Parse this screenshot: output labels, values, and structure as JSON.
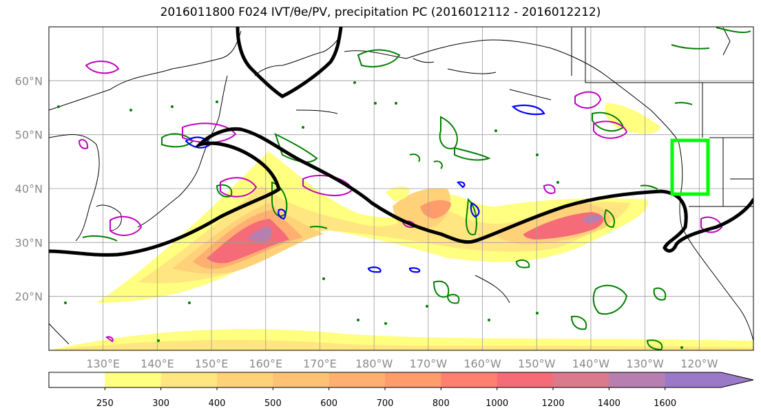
{
  "title": "2016011800 F024 IVT/θe/PV, precipitation PC (2016012112 - 2016012212)",
  "map": {
    "projection": "PlateCarree",
    "extent": {
      "lon_min": 120,
      "lon_max": 250,
      "lat_min": 10,
      "lat_max": 70
    },
    "lat_ticks": [
      "20°N",
      "30°N",
      "40°N",
      "50°N",
      "60°N"
    ],
    "lon_ticks": [
      "130°E",
      "140°E",
      "150°E",
      "160°E",
      "170°E",
      "180°W",
      "170°W",
      "160°W",
      "150°W",
      "140°W",
      "130°W",
      "120°W"
    ],
    "grid": true,
    "colors": {
      "pv_contour": "#000000",
      "theta_positive": "#008000",
      "theta_negative": "#0000ff",
      "pv_small": "#c000c0",
      "target_box": "#00ff00",
      "coastline": "#000000"
    }
  },
  "colorbar": {
    "levels": [
      "250",
      "300",
      "400",
      "500",
      "600",
      "700",
      "800",
      "1000",
      "1200",
      "1400",
      "1600"
    ],
    "colors": [
      "#ffff80",
      "#ffe680",
      "#ffd27a",
      "#ffc275",
      "#ffb070",
      "#ff9c6c",
      "#ff8070",
      "#f56c78",
      "#db7a8c",
      "#b67fb0",
      "#9a7ac8"
    ],
    "extend": "max"
  }
}
